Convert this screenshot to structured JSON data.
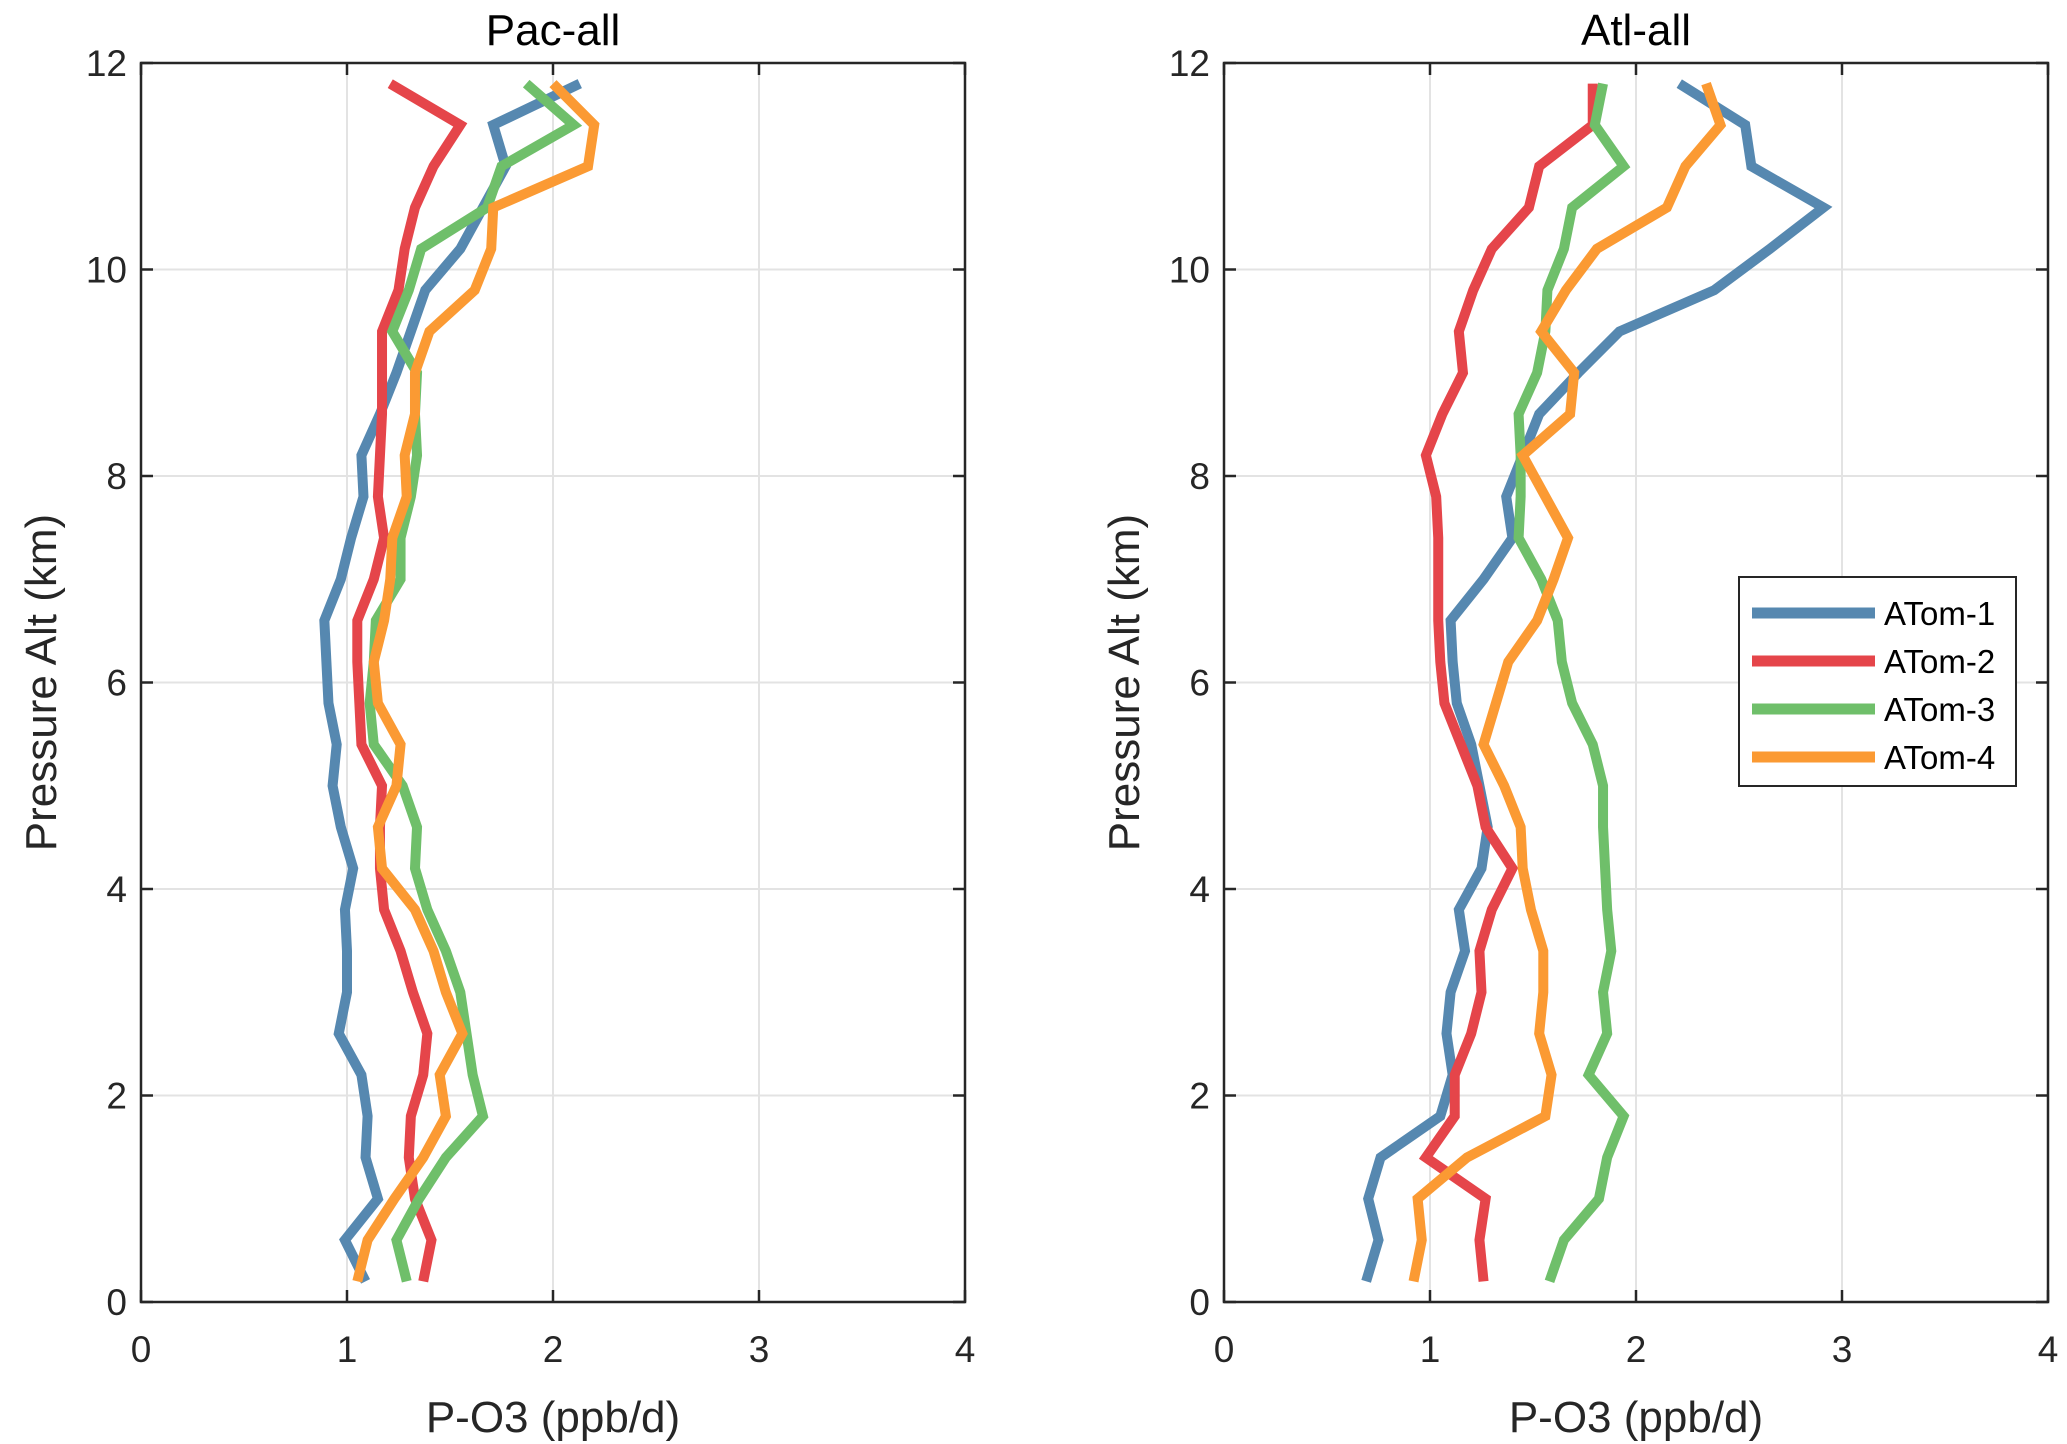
{
  "chart_data": [
    {
      "type": "line",
      "title": "Pac-all",
      "xlabel": "P-O3  (ppb/d)",
      "ylabel": "Pressure Alt (km)",
      "xlim": [
        0,
        4
      ],
      "ylim": [
        0,
        12
      ],
      "xticks": [
        "0",
        "1",
        "2",
        "3",
        "4"
      ],
      "yticks": [
        "0",
        "2",
        "4",
        "6",
        "8",
        "10",
        "12"
      ],
      "grid": true,
      "legend": null,
      "y": [
        0.2,
        0.6,
        1.0,
        1.4,
        1.8,
        2.2,
        2.6,
        3.0,
        3.4,
        3.8,
        4.2,
        4.6,
        5.0,
        5.4,
        5.8,
        6.2,
        6.6,
        7.0,
        7.4,
        7.8,
        8.2,
        8.6,
        9.0,
        9.4,
        9.8,
        10.2,
        10.6,
        11.0,
        11.4,
        11.8
      ],
      "series": [
        {
          "name": "ATom-1",
          "color": "#5688b0",
          "values": [
            1.09,
            0.99,
            1.15,
            1.09,
            1.1,
            1.07,
            0.96,
            1.0,
            1.0,
            0.99,
            1.03,
            0.97,
            0.93,
            0.95,
            0.91,
            0.9,
            0.89,
            0.97,
            1.02,
            1.08,
            1.07,
            1.16,
            1.24,
            1.31,
            1.38,
            1.55,
            1.66,
            1.77,
            1.71,
            2.13
          ]
        },
        {
          "name": "ATom-2",
          "color": "#e5454a",
          "values": [
            1.37,
            1.41,
            1.33,
            1.3,
            1.31,
            1.37,
            1.39,
            1.32,
            1.26,
            1.18,
            1.16,
            1.16,
            1.17,
            1.07,
            1.06,
            1.05,
            1.05,
            1.13,
            1.18,
            1.15,
            1.16,
            1.17,
            1.17,
            1.17,
            1.25,
            1.28,
            1.33,
            1.42,
            1.55,
            1.21
          ]
        },
        {
          "name": "ATom-3",
          "color": "#6fbf6a",
          "values": [
            1.29,
            1.24,
            1.35,
            1.48,
            1.66,
            1.61,
            1.58,
            1.55,
            1.48,
            1.39,
            1.33,
            1.34,
            1.27,
            1.13,
            1.11,
            1.13,
            1.14,
            1.26,
            1.26,
            1.31,
            1.34,
            1.33,
            1.34,
            1.22,
            1.3,
            1.36,
            1.68,
            1.75,
            2.1,
            1.87
          ]
        },
        {
          "name": "ATom-4",
          "color": "#fb9a33",
          "values": [
            1.05,
            1.1,
            1.23,
            1.37,
            1.48,
            1.45,
            1.56,
            1.48,
            1.42,
            1.33,
            1.17,
            1.15,
            1.24,
            1.26,
            1.15,
            1.13,
            1.18,
            1.21,
            1.22,
            1.29,
            1.28,
            1.33,
            1.33,
            1.4,
            1.62,
            1.7,
            1.71,
            2.17,
            2.2,
            2.0
          ]
        }
      ]
    },
    {
      "type": "line",
      "title": "Atl-all",
      "xlabel": "P-O3  (ppb/d)",
      "ylabel": "Pressure Alt (km)",
      "xlim": [
        0,
        4
      ],
      "ylim": [
        0,
        12
      ],
      "xticks": [
        "0",
        "1",
        "2",
        "3",
        "4"
      ],
      "yticks": [
        "0",
        "2",
        "4",
        "6",
        "8",
        "10",
        "12"
      ],
      "grid": true,
      "legend": "right-middle",
      "y": [
        0.2,
        0.6,
        1.0,
        1.4,
        1.8,
        2.2,
        2.6,
        3.0,
        3.4,
        3.8,
        4.2,
        4.6,
        5.0,
        5.4,
        5.8,
        6.2,
        6.6,
        7.0,
        7.4,
        7.8,
        8.2,
        8.6,
        9.0,
        9.4,
        9.8,
        10.2,
        10.6,
        11.0,
        11.4,
        11.8
      ],
      "series": [
        {
          "name": "ATom-1",
          "color": "#5688b0",
          "values": [
            0.69,
            0.75,
            0.7,
            0.76,
            1.05,
            1.11,
            1.08,
            1.1,
            1.17,
            1.14,
            1.25,
            1.28,
            1.24,
            1.2,
            1.13,
            1.11,
            1.1,
            1.26,
            1.4,
            1.37,
            1.45,
            1.53,
            1.72,
            1.92,
            2.38,
            2.65,
            2.91,
            2.56,
            2.53,
            2.21
          ]
        },
        {
          "name": "ATom-2",
          "color": "#e5454a",
          "values": [
            1.26,
            1.24,
            1.27,
            0.98,
            1.12,
            1.12,
            1.2,
            1.25,
            1.24,
            1.3,
            1.4,
            1.27,
            1.23,
            1.15,
            1.07,
            1.05,
            1.04,
            1.04,
            1.04,
            1.03,
            0.98,
            1.06,
            1.16,
            1.14,
            1.21,
            1.3,
            1.48,
            1.53,
            1.79,
            1.79
          ]
        },
        {
          "name": "ATom-3",
          "color": "#6fbf6a",
          "values": [
            1.58,
            1.65,
            1.82,
            1.86,
            1.94,
            1.77,
            1.86,
            1.84,
            1.88,
            1.86,
            1.85,
            1.84,
            1.84,
            1.79,
            1.69,
            1.64,
            1.62,
            1.54,
            1.43,
            1.44,
            1.44,
            1.43,
            1.52,
            1.56,
            1.57,
            1.65,
            1.69,
            1.94,
            1.8,
            1.84
          ]
        },
        {
          "name": "ATom-4",
          "color": "#fb9a33",
          "values": [
            0.92,
            0.96,
            0.94,
            1.18,
            1.56,
            1.59,
            1.53,
            1.55,
            1.55,
            1.49,
            1.45,
            1.44,
            1.36,
            1.26,
            1.32,
            1.38,
            1.52,
            1.6,
            1.67,
            1.56,
            1.45,
            1.68,
            1.7,
            1.54,
            1.66,
            1.81,
            2.15,
            2.24,
            2.41,
            2.34
          ]
        }
      ]
    }
  ]
}
